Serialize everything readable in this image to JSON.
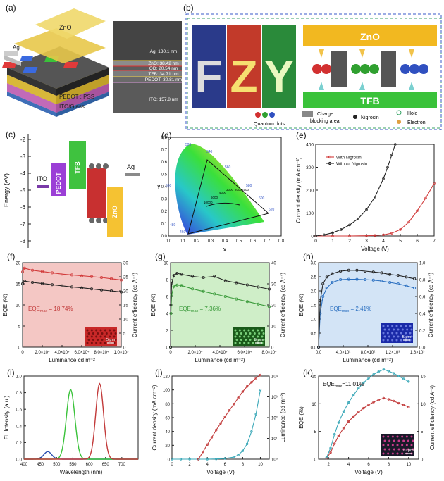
{
  "panel_labels": [
    "(a)",
    "(b)",
    "(c)",
    "(d)",
    "(e)",
    "(f)",
    "(g)",
    "(h)",
    "(i)",
    "(j)",
    "(k)"
  ],
  "a": {
    "stack_labels": [
      "Ag",
      "ZnO",
      "TFB",
      "PEDOT : PSS",
      "ITO/Glass"
    ],
    "tem_labels": [
      "Ag: 130.1 nm",
      "ZnO: 38.42 nm",
      "QD: 20.54 nm",
      "TFB: 34.71 nm",
      "PEDOT: 30.81 nm",
      "ITO: 157.8 nm"
    ]
  },
  "b": {
    "letters": [
      "F",
      "Z",
      "Y"
    ],
    "layer_top": "ZnO",
    "layer_bottom": "TFB",
    "legend": {
      "qd": "Quantum dots",
      "charge": "Charge",
      "blocking": "blocking area",
      "nigrosin": "Nigrosin",
      "hole": "Hole",
      "electron": "Electron"
    }
  },
  "c": {
    "ylabel": "Energy (eV)",
    "yticks": [
      "-2",
      "-3",
      "-4",
      "-5",
      "-6",
      "-7",
      "-8"
    ],
    "layers": [
      "ITO",
      "PEDOT",
      "TFB",
      "ZnO",
      "Ag"
    ],
    "colors": {
      "ito": "#7a3aa8",
      "pedot": "#9b3fd6",
      "tfb": "#3fc23f",
      "zno": "#f5c232",
      "ag": "#8a8a8a"
    }
  },
  "d": {
    "xlabel": "x",
    "ylabel": "y",
    "xticks": [
      "0.0",
      "0.1",
      "0.2",
      "0.3",
      "0.4",
      "0.5",
      "0.6",
      "0.7",
      "0.8"
    ],
    "yticks": [
      "0.0",
      "0.1",
      "0.2",
      "0.3",
      "0.4",
      "0.5",
      "0.6",
      "0.7",
      "0.8"
    ],
    "locus_labels": [
      "520",
      "540",
      "560",
      "580",
      "600",
      "620",
      "500",
      "480",
      "460"
    ],
    "temp_labels": [
      "10000",
      "6000",
      "4000",
      "3000",
      "2000",
      "1500"
    ]
  },
  "chart_data": [
    {
      "id": "e",
      "type": "line",
      "xlabel": "Voltage (V)",
      "ylabel": "Current density (mA cm⁻²)",
      "xlim": [
        0,
        7
      ],
      "ylim": [
        0,
        400
      ],
      "xticks": [
        "0",
        "1",
        "2",
        "3",
        "4",
        "5",
        "6",
        "7"
      ],
      "yticks": [
        "0",
        "100",
        "200",
        "300",
        "400"
      ],
      "legend": "top-left",
      "series": [
        {
          "name": "With Nigrosin",
          "color": "#d23b3b",
          "x": [
            0,
            1,
            2,
            3,
            3.5,
            4,
            4.5,
            5,
            5.5,
            6,
            6.5,
            7
          ],
          "y": [
            0,
            0,
            0,
            1,
            2,
            5,
            12,
            28,
            60,
            110,
            165,
            230
          ]
        },
        {
          "name": "Without Nigrosin",
          "color": "#222222",
          "x": [
            0,
            0.5,
            1,
            1.5,
            2,
            2.5,
            3,
            3.5,
            4,
            4.25,
            4.5,
            4.7
          ],
          "y": [
            0,
            5,
            14,
            28,
            48,
            75,
            115,
            170,
            250,
            300,
            355,
            400
          ]
        }
      ]
    },
    {
      "id": "f",
      "type": "line",
      "xlabel": "Luminance cd m⁻²",
      "ylabel": "EQE (%)",
      "ylabel_right": "Current efficiency (cd A⁻¹)",
      "xlim": [
        0,
        100000
      ],
      "ylim": [
        0,
        20
      ],
      "ylim_right": [
        0,
        30
      ],
      "xticks": [
        "0",
        "2.0×10⁴",
        "4.0×10⁴",
        "6.0×10⁴",
        "8.0×10⁴",
        "1.0×10⁵"
      ],
      "yticks": [
        "0",
        "5",
        "10",
        "15",
        "20"
      ],
      "yticks_right": [
        "0",
        "5",
        "10",
        "15",
        "20",
        "25",
        "30"
      ],
      "annotation": "EQE",
      "annotation_sub": "max",
      "annotation_value": " = 18.74%",
      "scale": "5 μm",
      "series": [
        {
          "name": "EQE",
          "color": "#d23b3b",
          "x": [
            0,
            2000,
            10000,
            20000,
            30000,
            40000,
            50000,
            60000,
            70000,
            80000,
            90000,
            100000
          ],
          "y": [
            17.8,
            18.7,
            18.2,
            17.9,
            17.6,
            17.3,
            17.1,
            16.9,
            16.7,
            16.5,
            16.2,
            15.9
          ]
        },
        {
          "name": "Current efficiency",
          "color": "#222222",
          "x": [
            0,
            2000,
            10000,
            20000,
            30000,
            40000,
            50000,
            60000,
            70000,
            80000,
            90000,
            100000
          ],
          "y": [
            22.5,
            23.5,
            23.0,
            22.6,
            22.2,
            21.8,
            21.4,
            21.1,
            20.7,
            20.3,
            20.0,
            19.6
          ]
        }
      ]
    },
    {
      "id": "g",
      "type": "line",
      "xlabel": "Luminance (cd m⁻²)",
      "ylabel": "EQE (%)",
      "ylabel_right": "Current efficiency (cd A⁻¹)",
      "xlim": [
        0,
        90000
      ],
      "ylim": [
        0,
        10
      ],
      "ylim_right": [
        0,
        40
      ],
      "xticks": [
        "0",
        "2.0×10⁴",
        "4.0×10⁴",
        "6.0×10⁴",
        "8.0×10⁴"
      ],
      "yticks": [
        "0",
        "2",
        "4",
        "6",
        "8",
        "10"
      ],
      "yticks_right": [
        "0",
        "10",
        "20",
        "30",
        "40"
      ],
      "annotation": "EQE",
      "annotation_sub": "max",
      "annotation_value": " = 7.36%",
      "scale": "5 μm",
      "series": [
        {
          "name": "EQE",
          "color": "#3a9a3a",
          "x": [
            0,
            300,
            1000,
            3000,
            6000,
            10000,
            20000,
            30000,
            40000,
            50000,
            60000,
            70000,
            80000,
            90000
          ],
          "y": [
            0,
            4,
            6.2,
            7.2,
            7.35,
            7.3,
            6.9,
            6.6,
            6.3,
            6.0,
            5.7,
            5.4,
            5.1,
            4.8
          ]
        },
        {
          "name": "Current efficiency",
          "color": "#222222",
          "x": [
            0,
            300,
            1000,
            3000,
            6000,
            10000,
            20000,
            30000,
            40000,
            50000,
            60000,
            70000,
            80000,
            90000
          ],
          "y": [
            0,
            20,
            30,
            34,
            35,
            34.5,
            33.5,
            33,
            33.5,
            31.5,
            30.5,
            29.5,
            28.5,
            27.5
          ]
        }
      ]
    },
    {
      "id": "h",
      "type": "line",
      "xlabel": "Luminance (cd m⁻²)",
      "ylabel": "EQE (%)",
      "ylabel_right": "Current efficiency (cd A⁻¹)",
      "xlim": [
        0,
        1800
      ],
      "ylim": [
        0,
        3.0
      ],
      "ylim_right": [
        0,
        1.0
      ],
      "xticks": [
        "0.0",
        "4.0×10²",
        "8.0×10²",
        "1.2×10³",
        "1.6×10³"
      ],
      "yticks": [
        "0.0",
        "0.5",
        "1.0",
        "1.5",
        "2.0",
        "2.5",
        "3.0"
      ],
      "yticks_right": [
        "0.0",
        "0.2",
        "0.4",
        "0.6",
        "0.8",
        "1.0"
      ],
      "annotation": "EQE",
      "annotation_sub": "max",
      "annotation_value": " = 2.41%",
      "scale": "5 μm",
      "series": [
        {
          "name": "EQE",
          "color": "#2a6fc0",
          "x": [
            0,
            30,
            80,
            150,
            250,
            400,
            550,
            700,
            850,
            1000,
            1150,
            1300,
            1450,
            1600,
            1750
          ],
          "y": [
            0,
            1.2,
            1.8,
            2.1,
            2.3,
            2.4,
            2.41,
            2.41,
            2.4,
            2.38,
            2.35,
            2.3,
            2.25,
            2.18,
            2.1
          ]
        },
        {
          "name": "Current efficiency",
          "color": "#222222",
          "x": [
            0,
            30,
            80,
            150,
            250,
            400,
            550,
            700,
            850,
            1000,
            1150,
            1300,
            1450,
            1600,
            1750
          ],
          "y": [
            0,
            0.55,
            0.75,
            0.83,
            0.87,
            0.9,
            0.91,
            0.91,
            0.9,
            0.89,
            0.88,
            0.86,
            0.85,
            0.83,
            0.81
          ]
        }
      ]
    },
    {
      "id": "i",
      "type": "line",
      "xlabel": "Wavelength (nm)",
      "ylabel": "EL Intensity (a.u.)",
      "xlim": [
        400,
        750
      ],
      "ylim": [
        0,
        1.1
      ],
      "xticks": [
        "400",
        "450",
        "500",
        "550",
        "600",
        "650",
        "700"
      ],
      "yticks": [
        "0.0",
        "0.2",
        "0.4",
        "0.6",
        "0.8",
        "1.0"
      ],
      "series": [
        {
          "name": "Blue",
          "color": "#2a4fb0",
          "center": 473,
          "width": 12,
          "peak": 0.1
        },
        {
          "name": "Green",
          "color": "#3ac23a",
          "center": 543,
          "width": 13,
          "peak": 0.92
        },
        {
          "name": "Red",
          "color": "#c23a3a",
          "center": 632,
          "width": 12,
          "peak": 1.0
        }
      ]
    },
    {
      "id": "j",
      "type": "line",
      "xlabel": "Voltage (V)",
      "ylabel": "Current density (mA cm⁻²)",
      "ylabel_right": "Luminance (cd m⁻²)",
      "xlim": [
        0,
        11
      ],
      "ylim": [
        0,
        120
      ],
      "xticks": [
        "0",
        "2",
        "4",
        "6",
        "8",
        "10"
      ],
      "yticks": [
        "0",
        "20",
        "40",
        "60",
        "80",
        "100",
        "120"
      ],
      "yticks_right": [
        "10⁰",
        "10¹",
        "10²",
        "10³",
        "10⁴"
      ],
      "ylim_right_log": [
        0,
        4
      ],
      "series": [
        {
          "name": "Current density",
          "color": "#3aa8b8",
          "x": [
            0,
            1,
            2,
            3,
            4,
            5,
            6,
            7,
            7.5,
            8,
            8.5,
            9,
            9.5,
            10
          ],
          "y": [
            0,
            0,
            0,
            0,
            0,
            0.3,
            1,
            3,
            6,
            12,
            22,
            40,
            65,
            100
          ]
        },
        {
          "name": "Luminance",
          "color": "#c23a3a",
          "x": [
            3,
            3.5,
            4,
            4.5,
            5,
            5.5,
            6,
            6.5,
            7,
            7.5,
            8,
            8.5,
            9,
            9.5,
            10
          ],
          "y_log": [
            0,
            0.35,
            0.7,
            1.05,
            1.4,
            1.72,
            2.05,
            2.35,
            2.65,
            2.95,
            3.25,
            3.5,
            3.7,
            3.9,
            4.05
          ]
        }
      ]
    },
    {
      "id": "k",
      "type": "line",
      "xlabel": "Voltage (V)",
      "ylabel": "EQE (%)",
      "ylabel_right": "Current efficiency (cd A⁻¹)",
      "xlim": [
        1,
        11
      ],
      "ylim": [
        0,
        15
      ],
      "ylim_right": [
        0,
        15
      ],
      "xticks": [
        "2",
        "4",
        "6",
        "8",
        "10"
      ],
      "yticks": [
        "0",
        "5",
        "10",
        "15"
      ],
      "yticks_right": [
        "0",
        "5",
        "10",
        "15"
      ],
      "annotation": "EQE",
      "annotation_sub": "max",
      "annotation_value": "=11.01%",
      "scale": "10 μm",
      "series": [
        {
          "name": "EQE",
          "color": "#c23a3a",
          "x": [
            1.8,
            2.2,
            2.6,
            3,
            3.5,
            4,
            4.5,
            5,
            5.5,
            6,
            6.5,
            7,
            7.5,
            8,
            8.5,
            9,
            9.5,
            10
          ],
          "y": [
            0.2,
            1.2,
            2.8,
            4.2,
            5.6,
            6.8,
            7.7,
            8.5,
            9.2,
            9.8,
            10.3,
            10.7,
            11.0,
            10.8,
            10.5,
            10.1,
            9.8,
            9.4
          ]
        },
        {
          "name": "Current efficiency",
          "color": "#3aa8b8",
          "x": [
            1.8,
            2.2,
            2.6,
            3,
            3.5,
            4,
            4.5,
            5,
            5.5,
            6,
            6.5,
            7,
            7.5,
            8,
            8.5,
            9,
            9.5,
            10
          ],
          "y": [
            0.3,
            2.0,
            4.5,
            6.6,
            8.6,
            10.2,
            11.6,
            12.8,
            13.8,
            14.6,
            15.3,
            15.8,
            16.2,
            15.9,
            15.5,
            15.0,
            14.5,
            14.0
          ]
        }
      ]
    }
  ]
}
